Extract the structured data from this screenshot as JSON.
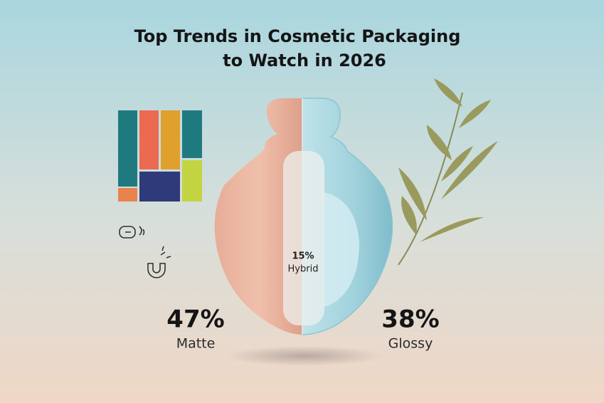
{
  "title": {
    "lines": [
      "Top Trends in Cosmetic Packaging",
      "to Watch in 2026"
    ]
  },
  "stats": [
    {
      "value": "47%",
      "label": "Matte"
    },
    {
      "value": "38%",
      "label": "Glossy"
    },
    {
      "value": "15%",
      "label": "Hybrid"
    }
  ]
}
